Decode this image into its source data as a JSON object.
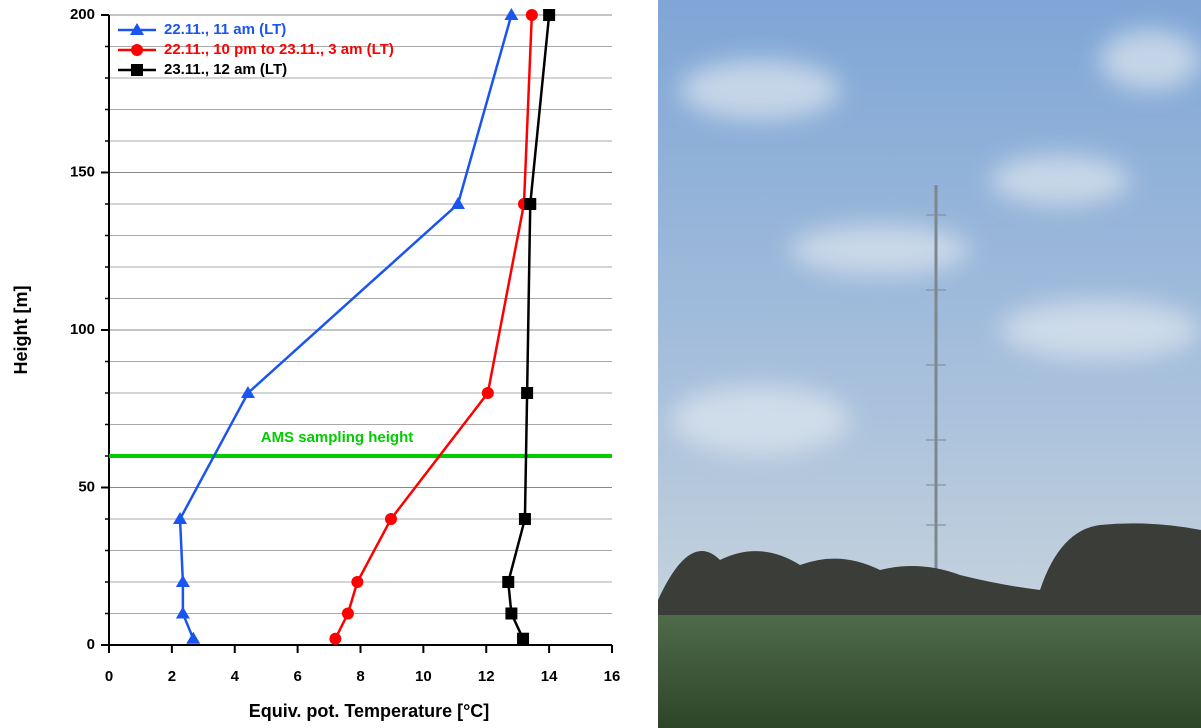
{
  "chart_data": {
    "type": "line",
    "xlabel": "Equiv. pot. Temperature [°C]",
    "ylabel": "Height [m]",
    "xlim": [
      0,
      16
    ],
    "xticks": [
      0,
      2,
      4,
      6,
      8,
      10,
      12,
      14,
      16
    ],
    "ylim": [
      0,
      200
    ],
    "yticks": [
      0,
      50,
      100,
      150,
      200
    ],
    "minor_yticks": [
      10,
      20,
      30,
      40,
      60,
      70,
      80,
      90,
      110,
      120,
      130,
      140,
      160,
      170,
      180,
      190
    ],
    "grid": true,
    "legend": "upper left",
    "series": [
      {
        "name": "22.11., 11 am (LT)",
        "color": "#1a55f0",
        "marker": "triangle",
        "x": [
          2.68,
          2.35,
          2.35,
          2.26,
          4.42,
          11.1,
          12.8
        ],
        "y": [
          2,
          10,
          20,
          40,
          80,
          140,
          200
        ]
      },
      {
        "name": "22.11., 10 pm to 23.11., 3 am (LT)",
        "color": "#ff0000",
        "marker": "circle",
        "x": [
          7.2,
          7.6,
          7.9,
          8.97,
          12.05,
          13.2,
          13.45
        ],
        "y": [
          2,
          10,
          20,
          40,
          80,
          140,
          200
        ]
      },
      {
        "name": "23.11., 12 am (LT)",
        "color": "#000000",
        "marker": "square",
        "x": [
          13.17,
          12.8,
          12.7,
          13.23,
          13.3,
          13.4,
          14.0
        ],
        "y": [
          2,
          10,
          20,
          40,
          80,
          140,
          200
        ]
      }
    ],
    "hline": {
      "value": 60,
      "label": "AMS sampling height",
      "color": "#00cc00"
    }
  }
}
